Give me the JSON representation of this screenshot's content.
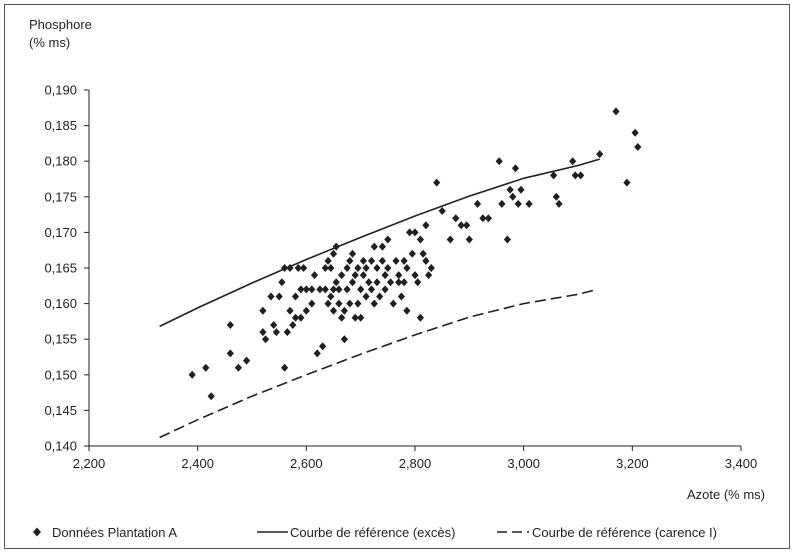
{
  "chart_data": {
    "type": "scatter",
    "ylabel_line1": "Phosphore",
    "ylabel_line2": "(% ms)",
    "xlabel": "Azote (% ms)",
    "xlim": [
      2.2,
      3.4
    ],
    "ylim": [
      0.14,
      0.19
    ],
    "x_ticks": [
      2.2,
      2.4,
      2.6,
      2.8,
      3.0,
      3.2,
      3.4
    ],
    "x_tick_labels": [
      "2,200",
      "2,400",
      "2,600",
      "2,800",
      "3,000",
      "3,200",
      "3,400"
    ],
    "y_ticks": [
      0.14,
      0.145,
      0.15,
      0.155,
      0.16,
      0.165,
      0.17,
      0.175,
      0.18,
      0.185,
      0.19
    ],
    "y_tick_labels": [
      "0,140",
      "0,145",
      "0,150",
      "0,155",
      "0,160",
      "0,165",
      "0,170",
      "0,175",
      "0,180",
      "0,185",
      "0,190"
    ],
    "grid": false,
    "legend_position": "bottom",
    "series": [
      {
        "name": "Données Plantation A",
        "kind": "markers",
        "marker": "diamond",
        "color": "#231f20",
        "points": [
          [
            2.39,
            0.15
          ],
          [
            2.415,
            0.151
          ],
          [
            2.425,
            0.147
          ],
          [
            2.46,
            0.157
          ],
          [
            2.46,
            0.153
          ],
          [
            2.475,
            0.151
          ],
          [
            2.49,
            0.152
          ],
          [
            2.52,
            0.156
          ],
          [
            2.52,
            0.159
          ],
          [
            2.525,
            0.155
          ],
          [
            2.535,
            0.161
          ],
          [
            2.54,
            0.157
          ],
          [
            2.545,
            0.156
          ],
          [
            2.55,
            0.161
          ],
          [
            2.555,
            0.163
          ],
          [
            2.56,
            0.151
          ],
          [
            2.56,
            0.165
          ],
          [
            2.565,
            0.156
          ],
          [
            2.57,
            0.159
          ],
          [
            2.57,
            0.165
          ],
          [
            2.575,
            0.157
          ],
          [
            2.58,
            0.158
          ],
          [
            2.58,
            0.161
          ],
          [
            2.585,
            0.165
          ],
          [
            2.59,
            0.162
          ],
          [
            2.59,
            0.158
          ],
          [
            2.595,
            0.165
          ],
          [
            2.6,
            0.162
          ],
          [
            2.6,
            0.159
          ],
          [
            2.61,
            0.16
          ],
          [
            2.61,
            0.162
          ],
          [
            2.615,
            0.164
          ],
          [
            2.62,
            0.153
          ],
          [
            2.625,
            0.162
          ],
          [
            2.63,
            0.154
          ],
          [
            2.635,
            0.162
          ],
          [
            2.635,
            0.165
          ],
          [
            2.64,
            0.166
          ],
          [
            2.64,
            0.16
          ],
          [
            2.645,
            0.161
          ],
          [
            2.645,
            0.165
          ],
          [
            2.65,
            0.167
          ],
          [
            2.65,
            0.162
          ],
          [
            2.65,
            0.159
          ],
          [
            2.655,
            0.168
          ],
          [
            2.655,
            0.163
          ],
          [
            2.66,
            0.16
          ],
          [
            2.66,
            0.162
          ],
          [
            2.665,
            0.164
          ],
          [
            2.665,
            0.158
          ],
          [
            2.67,
            0.159
          ],
          [
            2.67,
            0.155
          ],
          [
            2.675,
            0.165
          ],
          [
            2.675,
            0.162
          ],
          [
            2.68,
            0.166
          ],
          [
            2.68,
            0.16
          ],
          [
            2.685,
            0.167
          ],
          [
            2.685,
            0.163
          ],
          [
            2.69,
            0.164
          ],
          [
            2.69,
            0.158
          ],
          [
            2.695,
            0.165
          ],
          [
            2.695,
            0.16
          ],
          [
            2.7,
            0.162
          ],
          [
            2.7,
            0.158
          ],
          [
            2.705,
            0.166
          ],
          [
            2.705,
            0.164
          ],
          [
            2.71,
            0.165
          ],
          [
            2.71,
            0.161
          ],
          [
            2.715,
            0.163
          ],
          [
            2.72,
            0.166
          ],
          [
            2.72,
            0.162
          ],
          [
            2.725,
            0.168
          ],
          [
            2.725,
            0.16
          ],
          [
            2.73,
            0.163
          ],
          [
            2.73,
            0.165
          ],
          [
            2.735,
            0.161
          ],
          [
            2.74,
            0.168
          ],
          [
            2.74,
            0.166
          ],
          [
            2.745,
            0.164
          ],
          [
            2.745,
            0.162
          ],
          [
            2.75,
            0.169
          ],
          [
            2.75,
            0.165
          ],
          [
            2.755,
            0.163
          ],
          [
            2.76,
            0.16
          ],
          [
            2.765,
            0.166
          ],
          [
            2.77,
            0.164
          ],
          [
            2.77,
            0.163
          ],
          [
            2.775,
            0.161
          ],
          [
            2.78,
            0.163
          ],
          [
            2.78,
            0.166
          ],
          [
            2.785,
            0.165
          ],
          [
            2.785,
            0.159
          ],
          [
            2.79,
            0.17
          ],
          [
            2.795,
            0.167
          ],
          [
            2.8,
            0.17
          ],
          [
            2.8,
            0.164
          ],
          [
            2.805,
            0.163
          ],
          [
            2.81,
            0.169
          ],
          [
            2.81,
            0.158
          ],
          [
            2.815,
            0.167
          ],
          [
            2.82,
            0.166
          ],
          [
            2.82,
            0.171
          ],
          [
            2.825,
            0.164
          ],
          [
            2.83,
            0.165
          ],
          [
            2.84,
            0.177
          ],
          [
            2.85,
            0.173
          ],
          [
            2.865,
            0.169
          ],
          [
            2.875,
            0.172
          ],
          [
            2.885,
            0.171
          ],
          [
            2.895,
            0.171
          ],
          [
            2.9,
            0.169
          ],
          [
            2.915,
            0.174
          ],
          [
            2.925,
            0.172
          ],
          [
            2.935,
            0.172
          ],
          [
            2.955,
            0.18
          ],
          [
            2.96,
            0.174
          ],
          [
            2.97,
            0.169
          ],
          [
            2.975,
            0.176
          ],
          [
            2.98,
            0.175
          ],
          [
            2.985,
            0.179
          ],
          [
            2.99,
            0.174
          ],
          [
            2.995,
            0.176
          ],
          [
            3.01,
            0.174
          ],
          [
            3.055,
            0.178
          ],
          [
            3.06,
            0.175
          ],
          [
            3.065,
            0.174
          ],
          [
            3.09,
            0.18
          ],
          [
            3.095,
            0.178
          ],
          [
            3.105,
            0.178
          ],
          [
            3.14,
            0.181
          ],
          [
            3.17,
            0.187
          ],
          [
            3.19,
            0.177
          ],
          [
            3.205,
            0.184
          ],
          [
            3.21,
            0.182
          ]
        ]
      },
      {
        "name": "Courbe de référence (excès)",
        "kind": "line",
        "dash": "solid",
        "color": "#231f20",
        "points": [
          [
            2.33,
            0.1568
          ],
          [
            2.4,
            0.1594
          ],
          [
            2.5,
            0.1629
          ],
          [
            2.6,
            0.1662
          ],
          [
            2.7,
            0.1693
          ],
          [
            2.8,
            0.1723
          ],
          [
            2.9,
            0.1751
          ],
          [
            3.0,
            0.1776
          ],
          [
            3.1,
            0.1794
          ],
          [
            3.14,
            0.1803
          ]
        ]
      },
      {
        "name": "Courbe de référence (carence I)",
        "kind": "line",
        "dash": "dashed",
        "color": "#231f20",
        "points": [
          [
            2.33,
            0.1412
          ],
          [
            2.4,
            0.1437
          ],
          [
            2.5,
            0.147
          ],
          [
            2.6,
            0.15
          ],
          [
            2.7,
            0.1529
          ],
          [
            2.8,
            0.1556
          ],
          [
            2.9,
            0.1581
          ],
          [
            3.0,
            0.16
          ],
          [
            3.1,
            0.1613
          ],
          [
            3.135,
            0.162
          ]
        ]
      }
    ]
  }
}
